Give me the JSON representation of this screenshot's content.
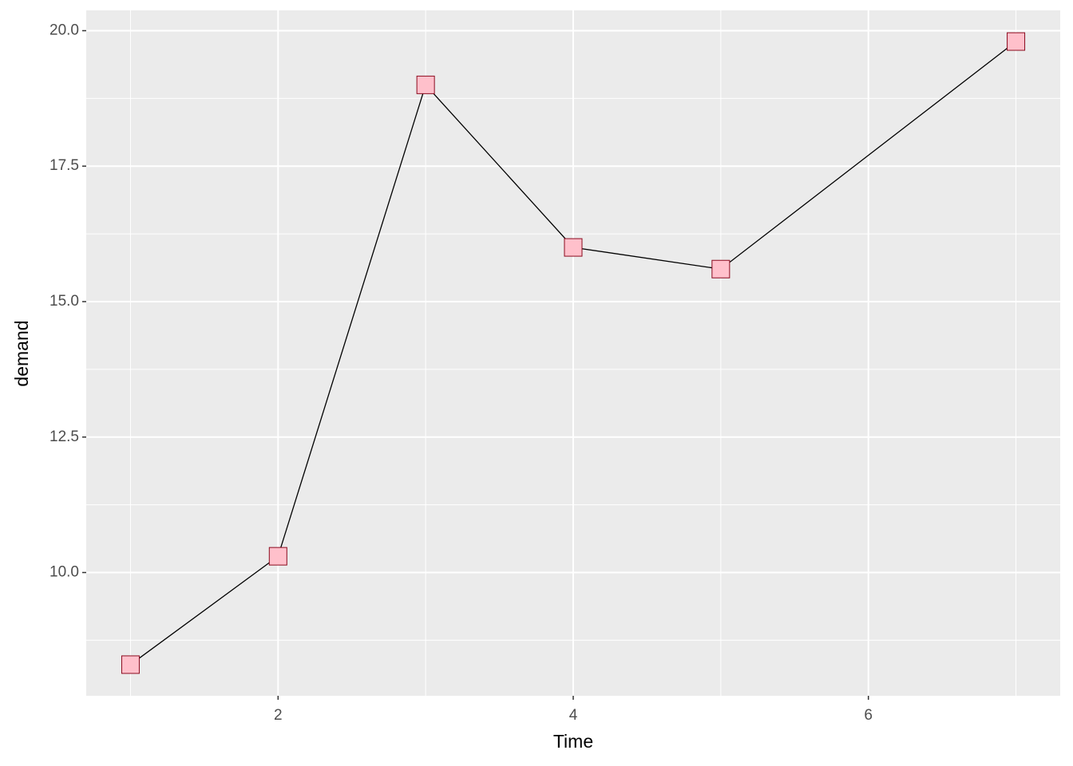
{
  "chart_data": {
    "type": "line",
    "x_label": "Time",
    "y_label": "demand",
    "x": [
      1,
      2,
      3,
      4,
      5,
      7
    ],
    "series": [
      {
        "name": "demand",
        "values": [
          8.3,
          10.3,
          19.0,
          16.0,
          15.6,
          19.8
        ],
        "color": "#000000",
        "marker_fill": "#ffc0cb",
        "marker_edge": "#8b0a1e"
      }
    ],
    "xlim": [
      0.7,
      7.3
    ],
    "ylim": [
      7.725,
      20.375
    ],
    "xticks": [
      2,
      4,
      6
    ],
    "yticks": [
      {
        "value": 10,
        "label": "10.0"
      },
      {
        "value": 12.5,
        "label": "12.5"
      },
      {
        "value": 15,
        "label": "15.0"
      },
      {
        "value": 17.5,
        "label": "17.5"
      },
      {
        "value": 20,
        "label": "20.0"
      }
    ],
    "grid": true,
    "background": "#ebebeb"
  }
}
